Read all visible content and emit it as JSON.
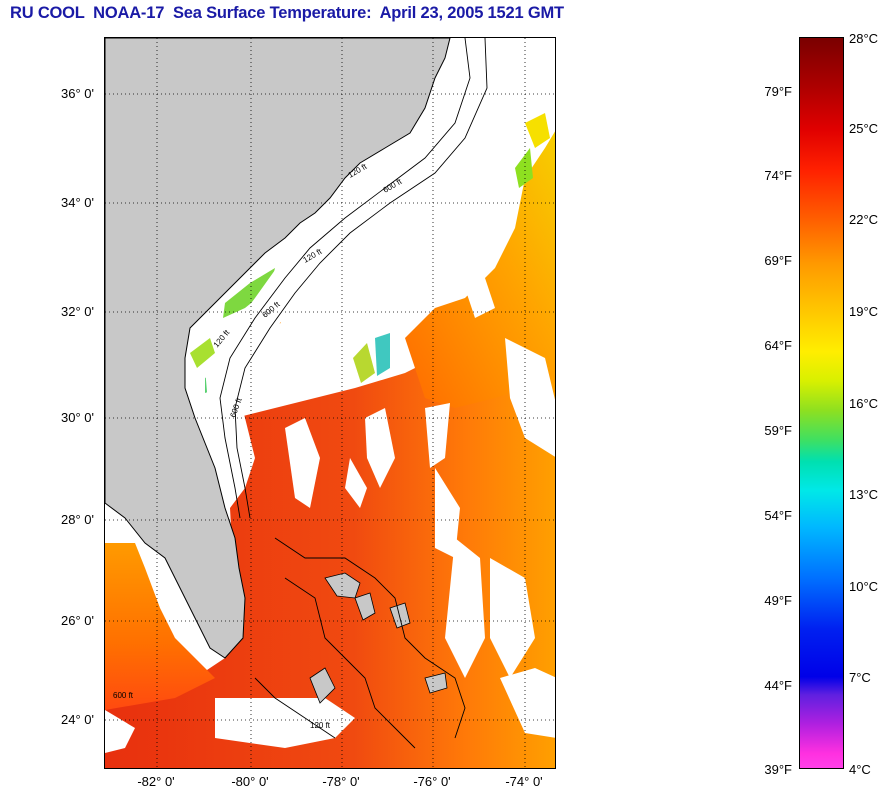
{
  "title": "RU COOL  NOAA-17  Sea Surface Temperature:  April 23, 2005 1521 GMT",
  "map": {
    "latitude_labels": [
      "36° 0'",
      "34° 0'",
      "32° 0'",
      "30° 0'",
      "28° 0'",
      "26° 0'",
      "24° 0'"
    ],
    "longitude_labels": [
      "-82° 0'",
      "-80° 0'",
      "-78° 0'",
      "-76° 0'",
      "-74° 0'"
    ],
    "isobath_labels": [
      "120 ft",
      "600 ft",
      "120 ft",
      "600 ft",
      "120 ft",
      "600 ft",
      "600 ft",
      "120 ft"
    ],
    "colors": {
      "land": "#c8c8c8",
      "cloud_mask": "#ffffff",
      "warm_water": "#e82a10",
      "mid_water": "#ff7a00",
      "cool_water": "#f2c000"
    }
  },
  "colorbar": {
    "celsius_labels": [
      "28°C",
      "25°C",
      "22°C",
      "19°C",
      "16°C",
      "13°C",
      "10°C",
      "7°C",
      "4°C"
    ],
    "fahrenheit_labels": [
      "79°F",
      "74°F",
      "69°F",
      "64°F",
      "59°F",
      "54°F",
      "49°F",
      "44°F",
      "39°F"
    ]
  }
}
